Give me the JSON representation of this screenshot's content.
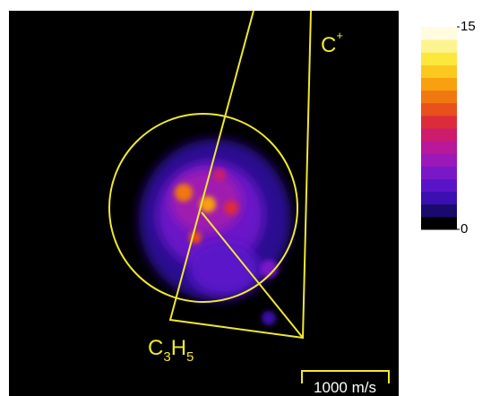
{
  "image": {
    "labels": {
      "c_plus": {
        "base": "C",
        "sup": "+"
      },
      "c3h5": [
        "C",
        "3",
        "H",
        "5"
      ],
      "scale_bar": "1000 m/s"
    }
  },
  "colorbar": {
    "lim": [
      0,
      15
    ],
    "ticks": [
      0,
      15
    ],
    "colors": [
      "#000000",
      "#1a0a6e",
      "#3a10b0",
      "#5a14c8",
      "#7a18c8",
      "#9c18b8",
      "#b8189a",
      "#cc1c6c",
      "#dc2c3c",
      "#e8501c",
      "#f07810",
      "#f8a010",
      "#fcc820",
      "#fce83c",
      "#fdf490",
      "#fffce0"
    ]
  }
}
